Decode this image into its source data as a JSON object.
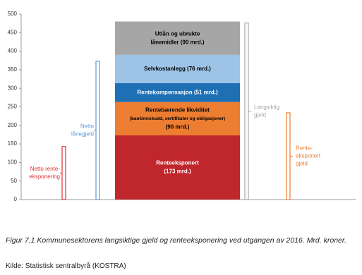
{
  "chart_data": {
    "type": "stacked-bar",
    "ylim": [
      0,
      500
    ],
    "yticks": [
      0,
      50,
      100,
      150,
      200,
      250,
      300,
      350,
      400,
      450,
      500
    ],
    "segments": [
      {
        "label": [
          "Renteeksponert",
          "(173 mrd.)"
        ],
        "value": 173,
        "color": "#c0272d",
        "label_color": "#ffffff"
      },
      {
        "label": [
          "Rentebærende likviditet",
          "(bankinnskudd, sertifikater og obligasjoner)",
          "(90 mrd.)"
        ],
        "value": 90,
        "color": "#ed7d31",
        "label_color": "#000000"
      },
      {
        "label": [
          "Rentekompensasjon (51 mrd.)"
        ],
        "value": 51,
        "color": "#1f6fb4",
        "label_color": "#ffffff"
      },
      {
        "label": [
          "Selvkostanlegg (76 mrd.)"
        ],
        "value": 76,
        "color": "#9dc3e6",
        "label_color": "#000000"
      },
      {
        "label": [
          "Utlån og ubrukte",
          "lånemidler (90 mrd.)"
        ],
        "value": 90,
        "color": "#a6a6a6",
        "label_color": "#000000"
      }
    ],
    "brackets": [
      {
        "label": [
          "Netto rente-",
          "eksponering"
        ],
        "value": 143,
        "color": "#e03030",
        "label_side": "left"
      },
      {
        "label": [
          "Netto",
          "lånegjeld"
        ],
        "value": 373,
        "color": "#5b9bd5",
        "label_side": "left"
      },
      {
        "label": [
          "Langsiktig",
          "gjeld"
        ],
        "value": 476,
        "color": "#a6a6a6",
        "label_side": "right"
      },
      {
        "label": [
          "Rente-",
          "eksponert",
          "gjeld"
        ],
        "value": 234,
        "color": "#ed7d31",
        "label_side": "right"
      }
    ]
  },
  "caption": "Figur 7.1 Kommunesektorens langsiktige gjeld og renteeksponering ved utgangen av 2016. Mrd. kroner.",
  "source": "Kilde: Statistisk sentralbyrå (KOSTRA)"
}
